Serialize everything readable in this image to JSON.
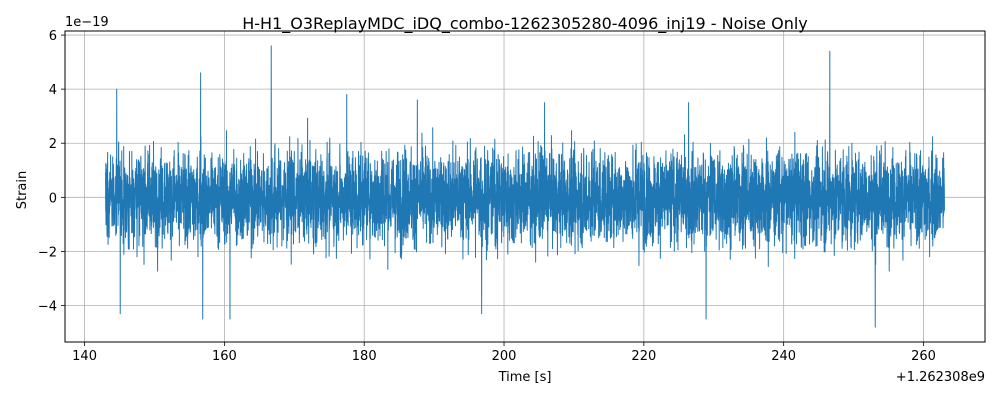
{
  "chart_data": {
    "type": "line",
    "title": "H-H1_O3ReplayMDC_iDQ_combo-1262305280-4096_inj19 - Noise Only",
    "xlabel": "Time [s]",
    "ylabel": "Strain",
    "x_offset_label": "+1.262308e9",
    "y_scale_label": "1e−19",
    "xlim": [
      137.2,
      268.8
    ],
    "ylim": [
      -5.35,
      6.15
    ],
    "x_ticks": [
      140,
      160,
      180,
      200,
      220,
      240,
      260
    ],
    "x_tick_labels": [
      "140",
      "160",
      "180",
      "200",
      "220",
      "240",
      "260"
    ],
    "y_ticks": [
      -4,
      -2,
      0,
      2,
      4,
      6
    ],
    "y_tick_labels": [
      "−4",
      "−2",
      "0",
      "2",
      "4",
      "6"
    ],
    "grid": true,
    "series": [
      {
        "color": "#1f77b4",
        "x_range": [
          143.0,
          263.0
        ],
        "y_range_observed": [
          -4.8,
          5.6
        ],
        "typical_envelope": [
          -2.5,
          2.5
        ],
        "notable_peaks": [
          {
            "x": 144.6,
            "y": 4.0
          },
          {
            "x": 156.6,
            "y": 4.6
          },
          {
            "x": 166.7,
            "y": 5.6
          },
          {
            "x": 177.5,
            "y": 3.8
          },
          {
            "x": 187.6,
            "y": 3.6
          },
          {
            "x": 205.8,
            "y": 3.5
          },
          {
            "x": 226.4,
            "y": 3.5
          },
          {
            "x": 246.6,
            "y": 5.4
          }
        ],
        "notable_troughs": [
          {
            "x": 145.1,
            "y": -4.3
          },
          {
            "x": 156.9,
            "y": -4.5
          },
          {
            "x": 160.8,
            "y": -4.5
          },
          {
            "x": 196.8,
            "y": -4.3
          },
          {
            "x": 228.9,
            "y": -4.5
          },
          {
            "x": 253.1,
            "y": -4.8
          }
        ]
      }
    ]
  }
}
